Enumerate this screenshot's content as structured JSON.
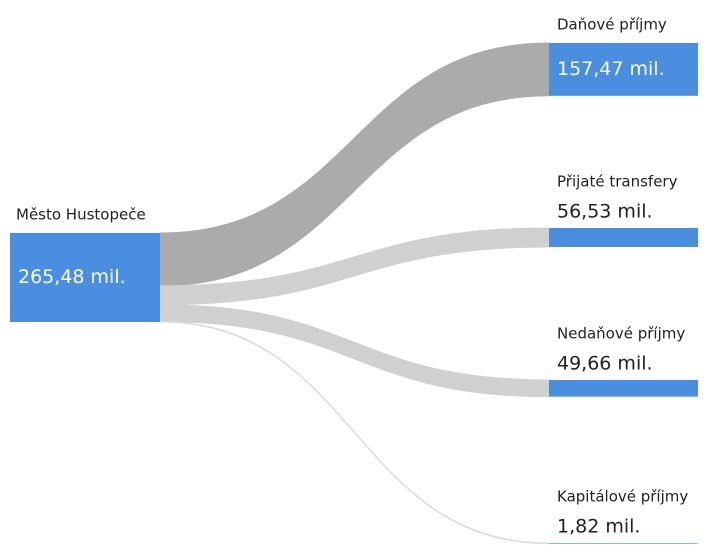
{
  "chart_data": {
    "type": "sankey",
    "node_color": "#4a8ee0",
    "source": {
      "name": "Město Hustopeče",
      "value": 265.48,
      "value_label": "265,48 mil."
    },
    "targets": [
      {
        "name": "Daňové příjmy",
        "value": 157.47,
        "value_label": "157,47 mil.",
        "link_color": "#ababab"
      },
      {
        "name": "Přijaté transfery",
        "value": 56.53,
        "value_label": "56,53 mil.",
        "link_color": "#d0d0d0"
      },
      {
        "name": "Nedaňové příjmy",
        "value": 49.66,
        "value_label": "49,66 mil.",
        "link_color": "#d0d0d0"
      },
      {
        "name": "Kapitálové příjmy",
        "value": 1.82,
        "value_label": "1,82 mil.",
        "link_color": "#dadada"
      }
    ]
  }
}
